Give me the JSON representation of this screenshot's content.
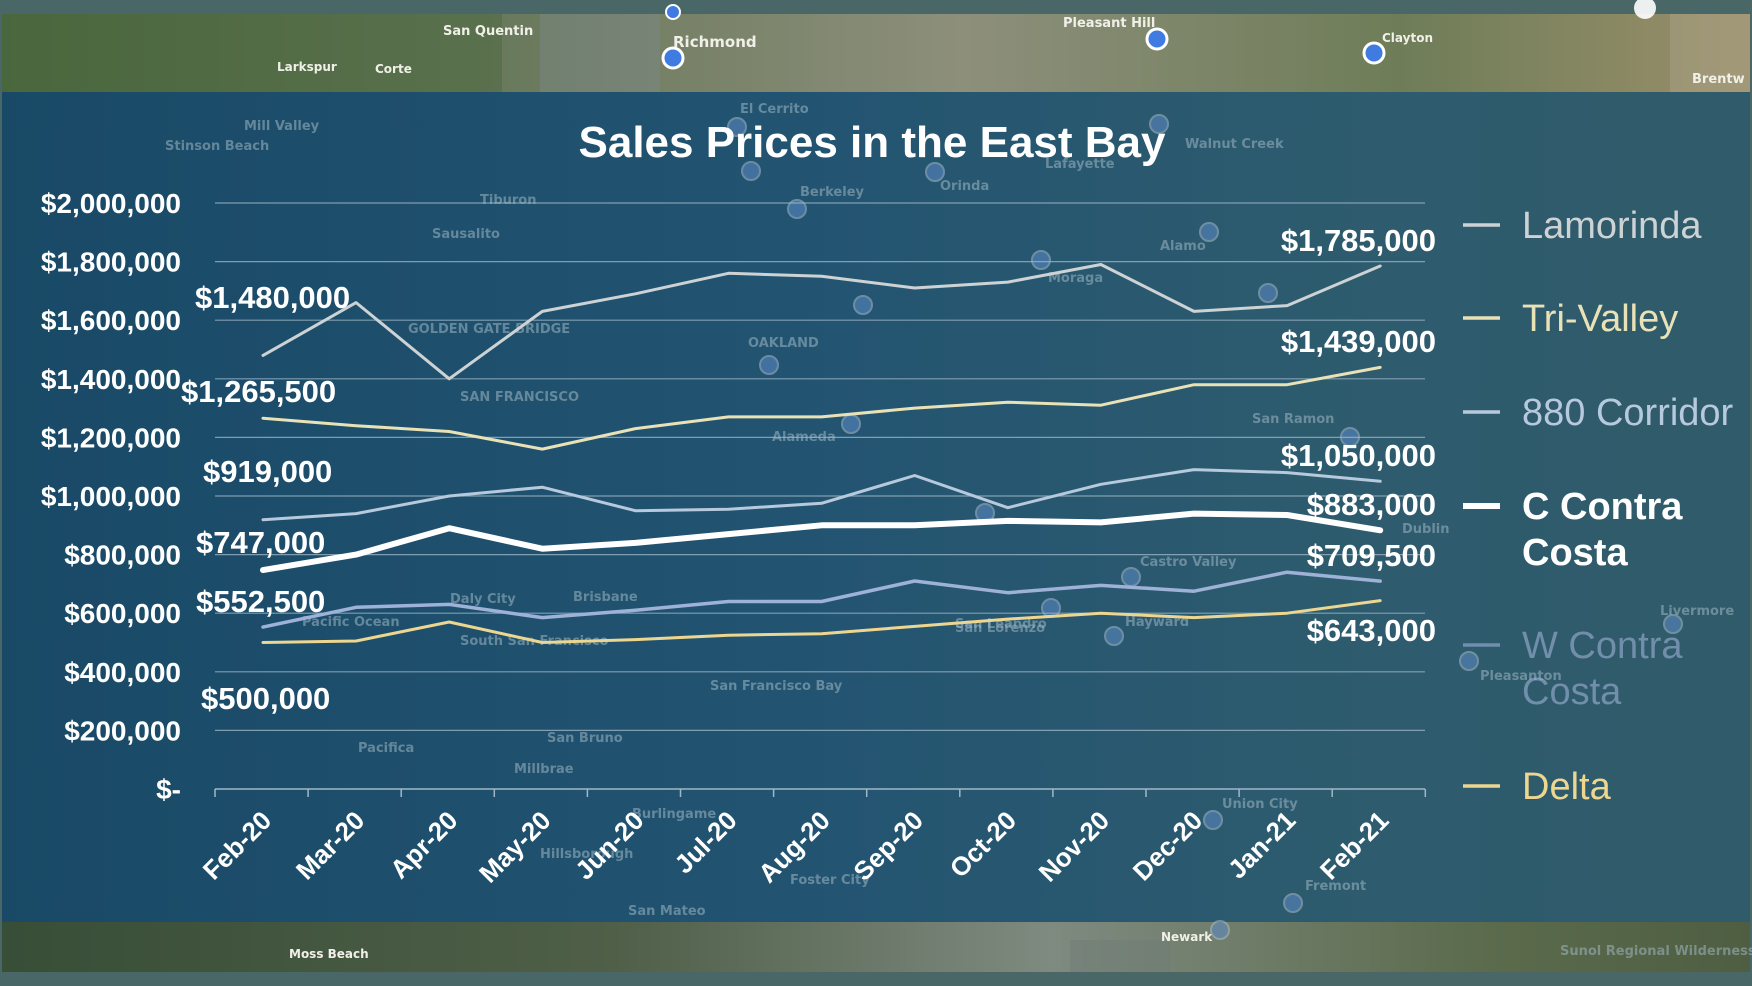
{
  "map": {
    "place_labels": [
      "San Quentin",
      "Richmond",
      "Pleasant Hill",
      "Clayton",
      "Larkspur",
      "Corte",
      "Brentw",
      "Moss Beach",
      "Newark"
    ],
    "faint_labels": [
      "Mill Valley",
      "Stinson Beach",
      "El Cerrito",
      "Berkeley",
      "Orinda",
      "Lafayette",
      "Walnut Creek",
      "Sausalito",
      "Tiburon",
      "Alamo",
      "Moraga",
      "OAKLAND",
      "SAN FRANCISCO",
      "Alameda",
      "San Ramon",
      "Daly City",
      "Brisbane",
      "Castro Valley",
      "South San Francisco",
      "San Leandro",
      "Hayward",
      "Livermore",
      "Pleasanton",
      "San Lorenzo",
      "San Francisco Bay",
      "Pacifica",
      "San Bruno",
      "Millbrae",
      "Burlingame",
      "Hillsborough",
      "Foster City",
      "San Mateo",
      "Union City",
      "Fremont",
      "Dublin",
      "Pacific Ocean",
      "GOLDEN GATE BRIDGE",
      "Sunol Regional Wilderness Area"
    ]
  },
  "colors": {
    "panel": "#1d4e6c",
    "grid": "#9fb8c8",
    "Lamorinda": "#cdd3d5",
    "Tri-Valley": "#e9e2b6",
    "880 Corridor": "#b7c9dc",
    "C Contra Costa": "#ffffff",
    "W Contra Costa": "#9eb1d6",
    "Delta": "#ecd690"
  },
  "chart_data": {
    "type": "line",
    "title": "Sales Prices in the East Bay",
    "categories": [
      "Feb-20",
      "Mar-20",
      "Apr-20",
      "May-20",
      "Jun-20",
      "Jul-20",
      "Aug-20",
      "Sep-20",
      "Oct-20",
      "Nov-20",
      "Dec-20",
      "Jan-21",
      "Feb-21"
    ],
    "ylim": [
      0,
      2000000
    ],
    "yticks": [
      0,
      200000,
      400000,
      600000,
      800000,
      1000000,
      1200000,
      1400000,
      1600000,
      1800000,
      2000000
    ],
    "ytick_labels": [
      "$-",
      "$200,000",
      "$400,000",
      "$600,000",
      "$800,000",
      "$1,000,000",
      "$1,200,000",
      "$1,400,000",
      "$1,600,000",
      "$1,800,000",
      "$2,000,000"
    ],
    "grid": true,
    "legend": "right",
    "series": [
      {
        "name": "Lamorinda",
        "values": [
          1480000,
          1660000,
          1400000,
          1630000,
          1690000,
          1760000,
          1750000,
          1710000,
          1730000,
          1790000,
          1630000,
          1650000,
          1785000
        ],
        "start_label": "$1,480,000",
        "end_label": "$1,785,000"
      },
      {
        "name": "Tri-Valley",
        "values": [
          1265500,
          1240000,
          1220000,
          1160000,
          1230000,
          1270000,
          1270000,
          1300000,
          1320000,
          1310000,
          1380000,
          1380000,
          1439000
        ],
        "start_label": "$1,265,500",
        "end_label": "$1,439,000"
      },
      {
        "name": "880 Corridor",
        "values": [
          919000,
          940000,
          1000000,
          1030000,
          950000,
          955000,
          975000,
          1070000,
          960000,
          1040000,
          1090000,
          1080000,
          1050000
        ],
        "start_label": "$919,000",
        "end_label": "$1,050,000"
      },
      {
        "name": "C Contra Costa",
        "values": [
          747000,
          800000,
          890000,
          820000,
          840000,
          870000,
          900000,
          900000,
          915000,
          910000,
          940000,
          935000,
          883000
        ],
        "start_label": "$747,000",
        "end_label": "$883,000"
      },
      {
        "name": "W Contra Costa",
        "values": [
          552500,
          620000,
          630000,
          585000,
          610000,
          640000,
          640000,
          710000,
          670000,
          695000,
          675000,
          740000,
          709500
        ],
        "start_label": "$552,500",
        "end_label": "$709,500"
      },
      {
        "name": "Delta",
        "values": [
          500000,
          505000,
          570000,
          500000,
          510000,
          525000,
          530000,
          555000,
          580000,
          600000,
          585000,
          600000,
          643000
        ],
        "start_label": "$500,000",
        "end_label": "$643,000"
      }
    ]
  }
}
